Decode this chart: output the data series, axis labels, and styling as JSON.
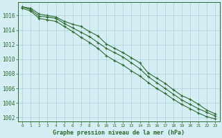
{
  "x": [
    0,
    1,
    2,
    3,
    4,
    5,
    6,
    7,
    8,
    9,
    10,
    11,
    12,
    13,
    14,
    15,
    16,
    17,
    18,
    19,
    20,
    21,
    22,
    23
  ],
  "line_top": [
    1017.2,
    1017.0,
    1016.2,
    1016.0,
    1015.8,
    1015.2,
    1014.8,
    1014.5,
    1013.8,
    1013.2,
    1012.1,
    1011.5,
    1010.9,
    1010.2,
    1009.5,
    1008.1,
    1007.4,
    1006.7,
    1005.8,
    1005.0,
    1004.5,
    1003.8,
    1003.0,
    1002.5
  ],
  "line_mid": [
    1017.2,
    1016.8,
    1015.9,
    1015.8,
    1015.6,
    1014.9,
    1014.3,
    1013.7,
    1013.1,
    1012.3,
    1011.5,
    1010.9,
    1010.3,
    1009.5,
    1008.7,
    1007.6,
    1006.8,
    1006.0,
    1005.2,
    1004.4,
    1003.8,
    1003.2,
    1002.7,
    1002.2
  ],
  "line_bot": [
    1017.0,
    1016.6,
    1015.6,
    1015.4,
    1015.2,
    1014.5,
    1013.8,
    1013.0,
    1012.3,
    1011.5,
    1010.5,
    1009.8,
    1009.2,
    1008.4,
    1007.7,
    1006.8,
    1006.0,
    1005.3,
    1004.5,
    1003.8,
    1003.2,
    1002.6,
    1002.1,
    1001.8
  ],
  "line_color": "#2d6a2d",
  "bg_color": "#d4eef4",
  "grid_color": "#aacfdb",
  "axis_color": "#2d6a2d",
  "xlabel": "Graphe pression niveau de la mer (hPa)",
  "ylim": [
    1001.5,
    1017.8
  ],
  "xlim": [
    -0.5,
    23.5
  ],
  "yticks": [
    1002,
    1004,
    1006,
    1008,
    1010,
    1012,
    1014,
    1016
  ],
  "xticks": [
    0,
    1,
    2,
    3,
    4,
    5,
    6,
    7,
    8,
    9,
    10,
    11,
    12,
    13,
    14,
    15,
    16,
    17,
    18,
    19,
    20,
    21,
    22,
    23
  ]
}
